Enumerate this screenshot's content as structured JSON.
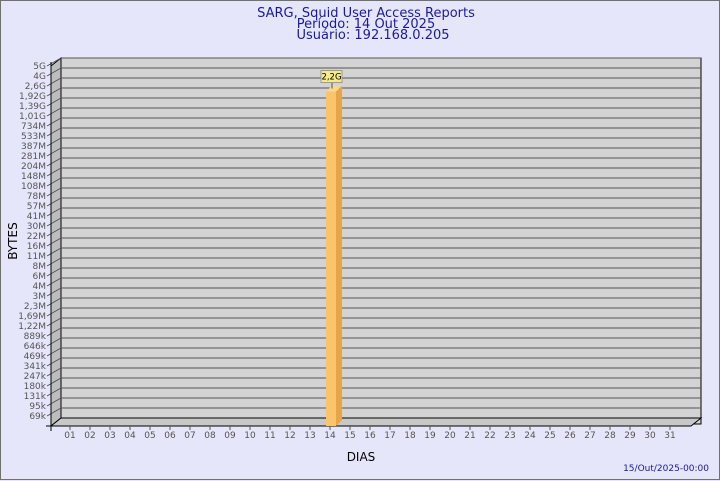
{
  "chart_data": {
    "type": "bar",
    "title": "SARG, Squid User Access Reports",
    "subtitle_lines": [
      "Período: 14 Out 2025",
      "Usuário: 192.168.0.205"
    ],
    "xlabel": "DIAS",
    "ylabel": "BYTES",
    "categories": [
      "01",
      "02",
      "03",
      "04",
      "05",
      "06",
      "07",
      "08",
      "09",
      "10",
      "11",
      "12",
      "13",
      "14",
      "15",
      "16",
      "17",
      "18",
      "19",
      "20",
      "21",
      "22",
      "23",
      "24",
      "25",
      "26",
      "27",
      "28",
      "29",
      "30",
      "31"
    ],
    "values": [
      null,
      null,
      null,
      null,
      null,
      null,
      null,
      null,
      null,
      null,
      null,
      null,
      null,
      2200000000,
      null,
      null,
      null,
      null,
      null,
      null,
      null,
      null,
      null,
      null,
      null,
      null,
      null,
      null,
      null,
      null,
      null
    ],
    "data_labels": {
      "14": "2,2G"
    },
    "yticks": [
      "5G",
      "4G",
      "2,6G",
      "1,92G",
      "1,39G",
      "1,01G",
      "734M",
      "533M",
      "387M",
      "281M",
      "204M",
      "148M",
      "108M",
      "78M",
      "57M",
      "41M",
      "30M",
      "22M",
      "16M",
      "11M",
      "8M",
      "6M",
      "4M",
      "3M",
      "2,3M",
      "1,69M",
      "1,22M",
      "889k",
      "646k",
      "469k",
      "341k",
      "247k",
      "180k",
      "131k",
      "95k",
      "69k"
    ],
    "yscale": "log",
    "grid": true,
    "style": "3d",
    "footer": "15/Out/2025-00:00",
    "colors": {
      "background": "#e6e6fa",
      "plot": "#d3d3d3",
      "bar": "#f9c46a",
      "bar_side": "#e6a548",
      "label_box": "#f5ea8a",
      "title": "#1a1a9c"
    }
  }
}
